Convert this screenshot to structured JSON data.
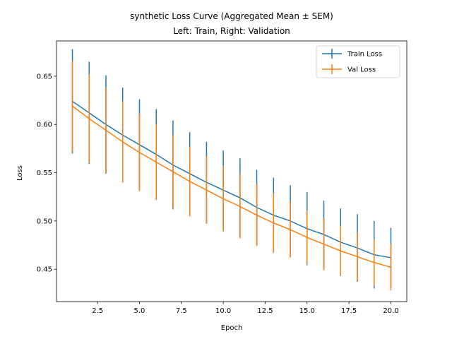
{
  "chart_data": {
    "type": "line",
    "title_line1": "synthetic Loss Curve (Aggregated Mean ± SEM)",
    "title_line2": "Left: Train, Right: Validation",
    "xlabel": "Epoch",
    "ylabel": "Loss",
    "xlim": [
      0.05,
      20.95
    ],
    "ylim": [
      0.4165,
      0.6865
    ],
    "xticks": [
      2.5,
      5.0,
      7.5,
      10.0,
      12.5,
      15.0,
      17.5,
      20.0
    ],
    "xtick_labels": [
      "2.5",
      "5.0",
      "7.5",
      "10.0",
      "12.5",
      "15.0",
      "17.5",
      "20.0"
    ],
    "yticks": [
      0.45,
      0.5,
      0.55,
      0.6,
      0.65
    ],
    "ytick_labels": [
      "0.45",
      "0.50",
      "0.55",
      "0.60",
      "0.65"
    ],
    "grid": false,
    "legend_position": "top-right",
    "x": [
      1,
      2,
      3,
      4,
      5,
      6,
      7,
      8,
      9,
      10,
      11,
      12,
      13,
      14,
      15,
      16,
      17,
      18,
      19,
      20
    ],
    "series": [
      {
        "name": "Train Loss",
        "color": "#1f77b4",
        "values": [
          0.624,
          0.612,
          0.6,
          0.589,
          0.579,
          0.569,
          0.558,
          0.549,
          0.54,
          0.532,
          0.524,
          0.514,
          0.506,
          0.5,
          0.492,
          0.486,
          0.478,
          0.472,
          0.465,
          0.462
        ],
        "errors": [
          0.054,
          0.053,
          0.051,
          0.049,
          0.047,
          0.047,
          0.046,
          0.043,
          0.042,
          0.041,
          0.041,
          0.039,
          0.039,
          0.037,
          0.038,
          0.035,
          0.035,
          0.035,
          0.035,
          0.031
        ]
      },
      {
        "name": "Val Loss",
        "color": "#ff7f0e",
        "values": [
          0.619,
          0.606,
          0.594,
          0.582,
          0.571,
          0.561,
          0.551,
          0.541,
          0.532,
          0.523,
          0.515,
          0.506,
          0.498,
          0.491,
          0.483,
          0.476,
          0.469,
          0.463,
          0.457,
          0.452
        ],
        "errors": [
          0.047,
          0.046,
          0.044,
          0.042,
          0.04,
          0.039,
          0.038,
          0.036,
          0.035,
          0.034,
          0.033,
          0.032,
          0.031,
          0.029,
          0.028,
          0.027,
          0.026,
          0.025,
          0.024,
          0.024
        ]
      }
    ]
  }
}
